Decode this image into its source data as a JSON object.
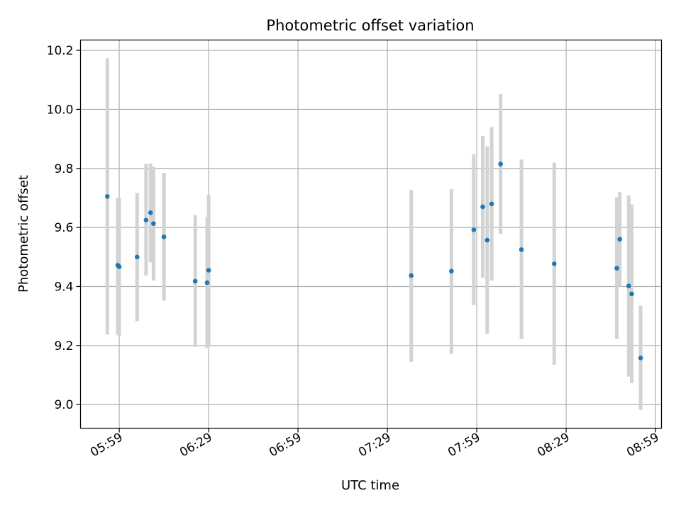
{
  "chart_data": {
    "type": "scatter",
    "title": "Photometric offset variation",
    "xlabel": "UTC time",
    "ylabel": "Photometric offset",
    "x_unit": "UTC clock time (HH:MM)",
    "xlim": [
      "05:46",
      "09:01"
    ],
    "ylim": [
      8.92,
      10.235
    ],
    "x_ticks": [
      "05:59",
      "06:29",
      "06:59",
      "07:29",
      "07:59",
      "08:29",
      "08:59"
    ],
    "y_ticks": [
      9.0,
      9.2,
      9.4,
      9.6,
      9.8,
      10.0,
      10.2
    ],
    "grid": true,
    "legend": "none",
    "colors": {
      "point": "#1f77b4",
      "errorbar": "#d3d3d3",
      "grid": "#b0b0b0"
    },
    "points": [
      {
        "x": "05:55",
        "y": 9.705,
        "lo": 9.237,
        "hi": 10.173
      },
      {
        "x": "05:58.5",
        "y": 9.472,
        "lo": 9.237,
        "hi": 9.7
      },
      {
        "x": "05:59",
        "y": 9.467,
        "lo": 9.232,
        "hi": 9.7
      },
      {
        "x": "06:05",
        "y": 9.5,
        "lo": 9.282,
        "hi": 9.717
      },
      {
        "x": "06:08",
        "y": 9.625,
        "lo": 9.437,
        "hi": 9.815
      },
      {
        "x": "06:09.5",
        "y": 9.65,
        "lo": 9.482,
        "hi": 9.817
      },
      {
        "x": "06:10.5",
        "y": 9.613,
        "lo": 9.42,
        "hi": 9.805
      },
      {
        "x": "06:14",
        "y": 9.568,
        "lo": 9.352,
        "hi": 9.785
      },
      {
        "x": "06:24.5",
        "y": 9.418,
        "lo": 9.195,
        "hi": 9.642
      },
      {
        "x": "06:28.5",
        "y": 9.413,
        "lo": 9.192,
        "hi": 9.635
      },
      {
        "x": "06:29",
        "y": 9.455,
        "lo": 9.195,
        "hi": 9.71
      },
      {
        "x": "07:37",
        "y": 9.437,
        "lo": 9.145,
        "hi": 9.727
      },
      {
        "x": "07:50.5",
        "y": 9.452,
        "lo": 9.172,
        "hi": 9.73
      },
      {
        "x": "07:58",
        "y": 9.592,
        "lo": 9.337,
        "hi": 9.848
      },
      {
        "x": "08:01",
        "y": 9.67,
        "lo": 9.43,
        "hi": 9.91
      },
      {
        "x": "08:02.5",
        "y": 9.557,
        "lo": 9.24,
        "hi": 9.875
      },
      {
        "x": "08:04",
        "y": 9.68,
        "lo": 9.42,
        "hi": 9.94
      },
      {
        "x": "08:07",
        "y": 9.815,
        "lo": 9.578,
        "hi": 10.052
      },
      {
        "x": "08:14",
        "y": 9.525,
        "lo": 9.222,
        "hi": 9.83
      },
      {
        "x": "08:25",
        "y": 9.477,
        "lo": 9.135,
        "hi": 9.82
      },
      {
        "x": "08:46",
        "y": 9.462,
        "lo": 9.222,
        "hi": 9.702
      },
      {
        "x": "08:47",
        "y": 9.56,
        "lo": 9.4,
        "hi": 9.72
      },
      {
        "x": "08:50",
        "y": 9.402,
        "lo": 9.095,
        "hi": 9.708
      },
      {
        "x": "08:51",
        "y": 9.375,
        "lo": 9.072,
        "hi": 9.678
      },
      {
        "x": "08:54",
        "y": 9.158,
        "lo": 8.982,
        "hi": 9.335
      }
    ]
  }
}
